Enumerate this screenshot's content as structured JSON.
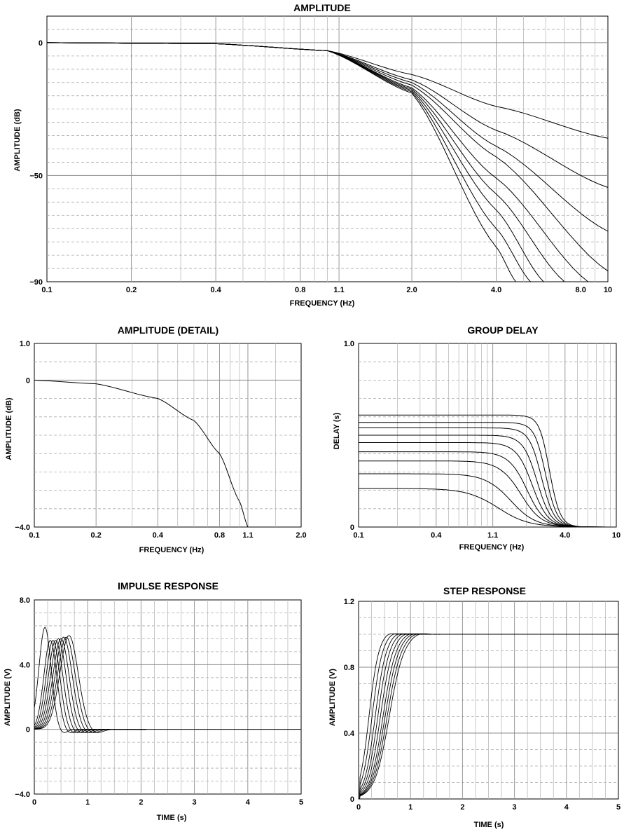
{
  "chart_data": [
    {
      "type": "line",
      "title": "AMPLITUDE",
      "xlabel": "FREQUENCY (Hz)",
      "ylabel": "AMPLITUDE (dB)",
      "x_scale": "log",
      "xlim": [
        0.1,
        10
      ],
      "ylim": [
        -90,
        10
      ],
      "x_tick_labels": [
        "0.1",
        "0.2",
        "0.4",
        "0.8",
        "1.1",
        "2.0",
        "4.0",
        "8.0",
        "10"
      ],
      "y_tick_labels": [
        "0",
        "−50",
        "−90"
      ],
      "grid": true,
      "series": [
        {
          "order": 2,
          "points": [
            [
              0.1,
              0
            ],
            [
              0.4,
              -0.4
            ],
            [
              1,
              -3
            ],
            [
              2,
              -12
            ],
            [
              4,
              -24
            ],
            [
              10,
              -36
            ]
          ]
        },
        {
          "order": 3,
          "points": [
            [
              0.1,
              0
            ],
            [
              0.4,
              -0.4
            ],
            [
              1,
              -3
            ],
            [
              2,
              -14
            ],
            [
              4,
              -33
            ],
            [
              10,
              -54.5
            ]
          ]
        },
        {
          "order": 4,
          "points": [
            [
              0.1,
              0
            ],
            [
              0.4,
              -0.4
            ],
            [
              1,
              -3
            ],
            [
              2,
              -15
            ],
            [
              4,
              -39
            ],
            [
              10,
              -71
            ]
          ]
        },
        {
          "order": 5,
          "points": [
            [
              0.1,
              0
            ],
            [
              0.4,
              -0.4
            ],
            [
              1,
              -3
            ],
            [
              2,
              -16
            ],
            [
              4,
              -43
            ],
            [
              10,
              -86
            ]
          ]
        },
        {
          "order": 6,
          "points": [
            [
              0.1,
              0
            ],
            [
              0.4,
              -0.4
            ],
            [
              1,
              -3
            ],
            [
              2,
              -17
            ],
            [
              4,
              -51
            ],
            [
              8.5,
              -90
            ]
          ]
        },
        {
          "order": 7,
          "points": [
            [
              0.1,
              0
            ],
            [
              0.4,
              -0.4
            ],
            [
              1,
              -3
            ],
            [
              2,
              -17.5
            ],
            [
              4,
              -57
            ],
            [
              7,
              -90
            ]
          ]
        },
        {
          "order": 8,
          "points": [
            [
              0.1,
              0
            ],
            [
              0.4,
              -0.4
            ],
            [
              1,
              -3
            ],
            [
              2,
              -18
            ],
            [
              4,
              -63
            ],
            [
              5.9,
              -90
            ]
          ]
        },
        {
          "order": 9,
          "points": [
            [
              0.1,
              0
            ],
            [
              0.4,
              -0.4
            ],
            [
              1,
              -3
            ],
            [
              2,
              -18.5
            ],
            [
              4,
              -70
            ],
            [
              5.3,
              -90
            ]
          ]
        },
        {
          "order": 10,
          "points": [
            [
              0.1,
              0
            ],
            [
              0.4,
              -0.4
            ],
            [
              1,
              -3
            ],
            [
              2,
              -19
            ],
            [
              4,
              -77
            ],
            [
              4.7,
              -90
            ]
          ]
        }
      ]
    },
    {
      "type": "line",
      "title": "AMPLITUDE (DETAIL)",
      "xlabel": "FREQUENCY (Hz)",
      "ylabel": "AMPLITUDE (dB)",
      "x_scale": "log",
      "xlim": [
        0.1,
        2.0
      ],
      "ylim": [
        -4.0,
        1.0
      ],
      "x_tick_labels": [
        "0.1",
        "0.2",
        "0.4",
        "0.8",
        "1.1",
        "2.0"
      ],
      "y_tick_labels": [
        "1.0",
        "0",
        "−4.0"
      ],
      "grid": true,
      "series": [
        {
          "points": [
            [
              0.1,
              0
            ],
            [
              0.2,
              -0.1
            ],
            [
              0.4,
              -0.5
            ],
            [
              0.6,
              -1.1
            ],
            [
              0.8,
              -2.0
            ],
            [
              1.0,
              -3.3
            ],
            [
              1.1,
              -4.0
            ]
          ]
        }
      ]
    },
    {
      "type": "line",
      "title": "GROUP DELAY",
      "xlabel": "FREQUENCY (Hz)",
      "ylabel": "DELAY (s)",
      "x_scale": "log",
      "xlim": [
        0.1,
        10
      ],
      "ylim": [
        0,
        1.0
      ],
      "x_tick_labels": [
        "0.1",
        "0.4",
        "1.1",
        "4.0",
        "10"
      ],
      "y_tick_labels": [
        "1.0",
        "0"
      ],
      "grid": true,
      "series": [
        {
          "order": 2,
          "delay": 0.21,
          "corner_hz": 1.2
        },
        {
          "order": 3,
          "delay": 0.29,
          "corner_hz": 1.5
        },
        {
          "order": 4,
          "delay": 0.36,
          "corner_hz": 1.8
        },
        {
          "order": 5,
          "delay": 0.41,
          "corner_hz": 2.0
        },
        {
          "order": 6,
          "delay": 0.46,
          "corner_hz": 2.2
        },
        {
          "order": 7,
          "delay": 0.5,
          "corner_hz": 2.4
        },
        {
          "order": 8,
          "delay": 0.54,
          "corner_hz": 2.6
        },
        {
          "order": 9,
          "delay": 0.57,
          "corner_hz": 2.8
        },
        {
          "order": 10,
          "delay": 0.61,
          "corner_hz": 3.0
        }
      ]
    },
    {
      "type": "line",
      "title": "IMPULSE RESPONSE",
      "xlabel": "TIME (s)",
      "ylabel": "AMPLITUDE (V)",
      "xlim": [
        0,
        5
      ],
      "ylim": [
        -4.0,
        8.0
      ],
      "x_tick_labels": [
        "0",
        "1",
        "2",
        "3",
        "4",
        "5"
      ],
      "y_tick_labels": [
        "8.0",
        "4.0",
        "0",
        "−4.0"
      ],
      "grid": true,
      "series": [
        {
          "order": 2,
          "peak_time_s": 0.2,
          "peak_v": 6.3
        },
        {
          "order": 3,
          "peak_time_s": 0.3,
          "peak_v": 5.5
        },
        {
          "order": 4,
          "peak_time_s": 0.35,
          "peak_v": 5.5
        },
        {
          "order": 5,
          "peak_time_s": 0.4,
          "peak_v": 5.5
        },
        {
          "order": 6,
          "peak_time_s": 0.45,
          "peak_v": 5.6
        },
        {
          "order": 7,
          "peak_time_s": 0.5,
          "peak_v": 5.6
        },
        {
          "order": 8,
          "peak_time_s": 0.55,
          "peak_v": 5.7
        },
        {
          "order": 9,
          "peak_time_s": 0.6,
          "peak_v": 5.7
        },
        {
          "order": 10,
          "peak_time_s": 0.65,
          "peak_v": 5.8
        }
      ]
    },
    {
      "type": "line",
      "title": "STEP RESPONSE",
      "xlabel": "TIME (s)",
      "ylabel": "AMPLITUDE (V)",
      "xlim": [
        0,
        5
      ],
      "ylim": [
        0,
        1.2
      ],
      "x_tick_labels": [
        "0",
        "1",
        "2",
        "3",
        "4",
        "5"
      ],
      "y_tick_labels": [
        "1.2",
        "0.8",
        "0.4",
        "0"
      ],
      "grid": true,
      "series": [
        {
          "order": 2,
          "half_time_s": 0.2,
          "final_v": 1.0
        },
        {
          "order": 3,
          "half_time_s": 0.26,
          "final_v": 1.0
        },
        {
          "order": 4,
          "half_time_s": 0.32,
          "final_v": 1.0
        },
        {
          "order": 5,
          "half_time_s": 0.37,
          "final_v": 1.0
        },
        {
          "order": 6,
          "half_time_s": 0.42,
          "final_v": 1.0
        },
        {
          "order": 7,
          "half_time_s": 0.47,
          "final_v": 1.0
        },
        {
          "order": 8,
          "half_time_s": 0.51,
          "final_v": 1.0
        },
        {
          "order": 9,
          "half_time_s": 0.55,
          "final_v": 1.0
        },
        {
          "order": 10,
          "half_time_s": 0.59,
          "final_v": 1.0
        }
      ]
    }
  ]
}
